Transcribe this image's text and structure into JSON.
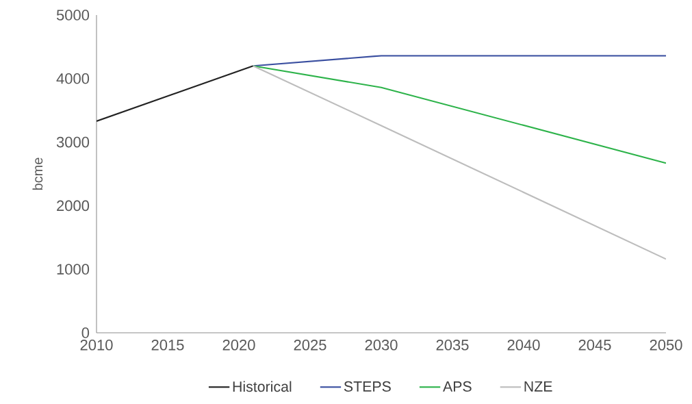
{
  "chart_data": {
    "type": "line",
    "ylabel": "bcme",
    "xlim": [
      2010,
      2050
    ],
    "xticks": [
      2010,
      2015,
      2020,
      2025,
      2030,
      2035,
      2040,
      2045,
      2050
    ],
    "ylim": [
      0,
      5000
    ],
    "yticks": [
      0,
      1000,
      2000,
      3000,
      4000,
      5000
    ],
    "grid": false,
    "legend": "bottom",
    "marker": "none",
    "line_style": "solid",
    "series": [
      {
        "name": "Historical",
        "color": "#222222",
        "x": [
          2010,
          2021
        ],
        "values": [
          3330,
          4200
        ]
      },
      {
        "name": "STEPS",
        "color": "#3a4fa0",
        "x": [
          2021,
          2030,
          2050
        ],
        "values": [
          4200,
          4360,
          4360
        ]
      },
      {
        "name": "APS",
        "color": "#2db34a",
        "x": [
          2021,
          2030,
          2050
        ],
        "values": [
          4200,
          3860,
          2670
        ]
      },
      {
        "name": "NZE",
        "color": "#bdbdbd",
        "x": [
          2021,
          2030,
          2050
        ],
        "values": [
          4200,
          3260,
          1160
        ]
      }
    ]
  }
}
